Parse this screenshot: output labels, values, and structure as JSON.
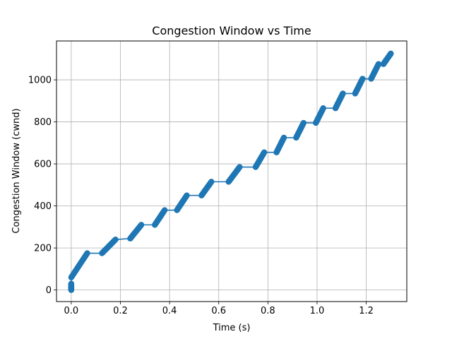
{
  "chart_data": {
    "type": "line",
    "title": "Congestion Window vs Time",
    "xlabel": "Time (s)",
    "ylabel": "Congestion Window (cwnd)",
    "xlim": [
      -0.06,
      1.365
    ],
    "ylim": [
      -55,
      1185
    ],
    "xticks": [
      0.0,
      0.2,
      0.4,
      0.6,
      0.8,
      1.0,
      1.2
    ],
    "xtick_labels": [
      "0.0",
      "0.2",
      "0.4",
      "0.6",
      "0.8",
      "1.0",
      "1.2"
    ],
    "yticks": [
      0,
      200,
      400,
      600,
      800,
      1000
    ],
    "ytick_labels": [
      "0",
      "200",
      "400",
      "600",
      "800",
      "1000"
    ],
    "grid": true,
    "marker": "circle",
    "series": [
      {
        "color": "#1f77b4",
        "segments": [
          {
            "t0": 0.0,
            "t1": 0.0,
            "y0": 0,
            "y1": 30
          },
          {
            "t0": 0.0,
            "t1": 0.065,
            "y0": 60,
            "y1": 175
          },
          {
            "t0": 0.125,
            "t1": 0.18,
            "y0": 175,
            "y1": 240
          },
          {
            "t0": 0.24,
            "t1": 0.285,
            "y0": 245,
            "y1": 310
          },
          {
            "t0": 0.34,
            "t1": 0.38,
            "y0": 310,
            "y1": 380
          },
          {
            "t0": 0.43,
            "t1": 0.47,
            "y0": 380,
            "y1": 450
          },
          {
            "t0": 0.53,
            "t1": 0.57,
            "y0": 450,
            "y1": 515
          },
          {
            "t0": 0.64,
            "t1": 0.685,
            "y0": 515,
            "y1": 585
          },
          {
            "t0": 0.75,
            "t1": 0.785,
            "y0": 585,
            "y1": 655
          },
          {
            "t0": 0.835,
            "t1": 0.865,
            "y0": 655,
            "y1": 725
          },
          {
            "t0": 0.915,
            "t1": 0.945,
            "y0": 725,
            "y1": 795
          },
          {
            "t0": 0.995,
            "t1": 1.025,
            "y0": 795,
            "y1": 865
          },
          {
            "t0": 1.075,
            "t1": 1.105,
            "y0": 865,
            "y1": 935
          },
          {
            "t0": 1.155,
            "t1": 1.185,
            "y0": 935,
            "y1": 1005
          },
          {
            "t0": 1.22,
            "t1": 1.25,
            "y0": 1005,
            "y1": 1075
          },
          {
            "t0": 1.27,
            "t1": 1.3,
            "y0": 1075,
            "y1": 1125
          }
        ]
      }
    ]
  }
}
